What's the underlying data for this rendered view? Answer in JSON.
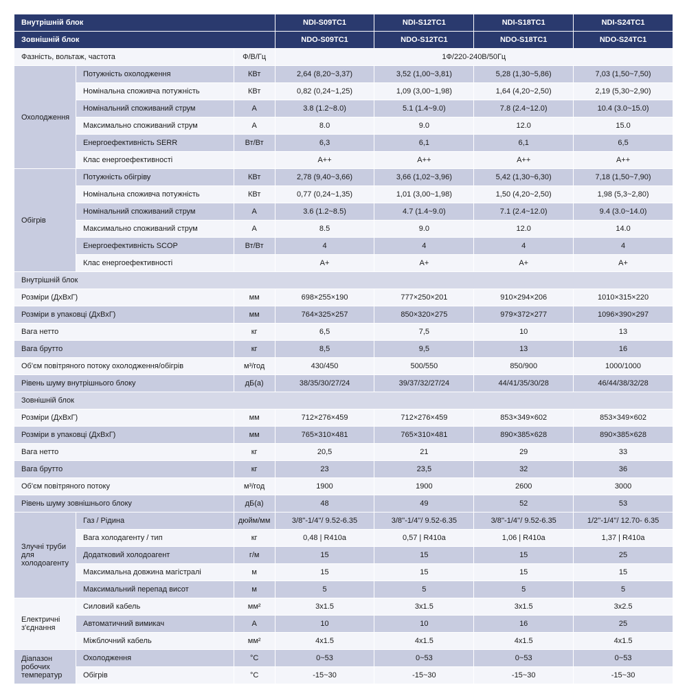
{
  "headers": {
    "indoor": "Внутрішній блок",
    "outdoor": "Зовнішній блок",
    "models_indoor": [
      "NDI-S09TC1",
      "NDI-S12TC1",
      "NDI-S18TC1",
      "NDI-S24TC1"
    ],
    "models_outdoor": [
      "NDO-S09TC1",
      "NDO-S12TC1",
      "NDO-S18TC1",
      "NDO-S24TC1"
    ]
  },
  "phase": {
    "label": "Фазність, вольтаж, частота",
    "unit": "Ф/В/Гц",
    "value": "1Ф/220-240В/50Гц"
  },
  "cooling": {
    "group": "Охолодження",
    "rows": [
      {
        "label": "Потужність охолодження",
        "unit": "КВт",
        "v": [
          "2,64 (8,20~3,37)",
          "3,52 (1,00~3,81)",
          "5,28 (1,30~5,86)",
          "7,03 (1,50~7,50)"
        ]
      },
      {
        "label": "Номінальна споживча потужність",
        "unit": "КВт",
        "v": [
          "0,82 (0,24~1,25)",
          "1,09 (3,00~1,98)",
          "1,64 (4,20~2,50)",
          "2,19 (5,30~2,90)"
        ]
      },
      {
        "label": "Номінальний споживаний струм",
        "unit": "А",
        "v": [
          "3.8 (1.2~8.0)",
          "5.1 (1.4~9.0)",
          "7.8 (2.4~12.0)",
          "10.4 (3.0~15.0)"
        ]
      },
      {
        "label": "Максимально споживаний струм",
        "unit": "А",
        "v": [
          "8.0",
          "9.0",
          "12.0",
          "15.0"
        ]
      },
      {
        "label": "Енергоефективність SERR",
        "unit": "Вт/Вт",
        "v": [
          "6,3",
          "6,1",
          "6,1",
          "6,5"
        ]
      },
      {
        "label": "Клас енергоефективності",
        "unit": "",
        "v": [
          "A++",
          "A++",
          "A++",
          "A++"
        ]
      }
    ]
  },
  "heating": {
    "group": "Обігрів",
    "rows": [
      {
        "label": "Потужність обігріву",
        "unit": "КВт",
        "v": [
          "2,78 (9,40~3,66)",
          "3,66 (1,02~3,96)",
          "5,42 (1,30~6,30)",
          "7,18 (1,50~7,90)"
        ]
      },
      {
        "label": "Номінальна споживча потужність",
        "unit": "КВт",
        "v": [
          "0,77 (0,24~1,35)",
          "1,01 (3,00~1,98)",
          "1,50 (4,20~2,50)",
          "1,98 (5,3~2,80)"
        ]
      },
      {
        "label": "Номінальний споживаний струм",
        "unit": "А",
        "v": [
          "3.6 (1.2~8.5)",
          "4.7 (1.4~9.0)",
          "7.1 (2.4~12.0)",
          "9.4 (3.0~14.0)"
        ]
      },
      {
        "label": "Максимально споживаний струм",
        "unit": "А",
        "v": [
          "8.5",
          "9.0",
          "12.0",
          "14.0"
        ]
      },
      {
        "label": "Енергоефективність SCOP",
        "unit": "Вт/Вт",
        "v": [
          "4",
          "4",
          "4",
          "4"
        ]
      },
      {
        "label": "Клас енергоефективності",
        "unit": "",
        "v": [
          "A+",
          "A+",
          "A+",
          "A+"
        ]
      }
    ]
  },
  "indoor_section": {
    "title": "Внутрішній блок",
    "rows": [
      {
        "label": "Розміри (ДхВхГ)",
        "unit": "мм",
        "v": [
          "698×255×190",
          "777×250×201",
          "910×294×206",
          "1010×315×220"
        ]
      },
      {
        "label": "Розміри в упаковці (ДхВхГ)",
        "unit": "мм",
        "v": [
          "764×325×257",
          "850×320×275",
          "979×372×277",
          "1096×390×297"
        ]
      },
      {
        "label": "Вага нетто",
        "unit": "кг",
        "v": [
          "6,5",
          "7,5",
          "10",
          "13"
        ]
      },
      {
        "label": "Вага брутто",
        "unit": "кг",
        "v": [
          "8,5",
          "9,5",
          "13",
          "16"
        ]
      },
      {
        "label": "Об'єм повітряного потоку охолодження/обігрів",
        "unit": "м³/год",
        "v": [
          "430/450",
          "500/550",
          "850/900",
          "1000/1000"
        ]
      },
      {
        "label": "Рівень шуму внутрішнього блоку",
        "unit": "дБ(а)",
        "v": [
          "38/35/30/27/24",
          "39/37/32/27/24",
          "44/41/35/30/28",
          "46/44/38/32/28"
        ]
      }
    ]
  },
  "outdoor_section": {
    "title": "Зовнішній блок",
    "rows": [
      {
        "label": "Розміри (ДхВхГ)",
        "unit": "мм",
        "v": [
          "712×276×459",
          "712×276×459",
          "853×349×602",
          "853×349×602"
        ]
      },
      {
        "label": "Розміри в упаковці (ДхВхГ)",
        "unit": "мм",
        "v": [
          "765×310×481",
          "765×310×481",
          "890×385×628",
          "890×385×628"
        ]
      },
      {
        "label": "Вага нетто",
        "unit": "кг",
        "v": [
          "20,5",
          "21",
          "29",
          "33"
        ]
      },
      {
        "label": "Вага брутто",
        "unit": "кг",
        "v": [
          "23",
          "23,5",
          "32",
          "36"
        ]
      },
      {
        "label": "Об'єм повітряного потоку",
        "unit": "м³/год",
        "v": [
          "1900",
          "1900",
          "2600",
          "3000"
        ]
      },
      {
        "label": "Рівень шуму зовнішнього блоку",
        "unit": "дБ(а)",
        "v": [
          "48",
          "49",
          "52",
          "53"
        ]
      }
    ]
  },
  "pipes": {
    "group": "Злучні труби для холодоагенту",
    "rows": [
      {
        "label": "Газ / Рідина",
        "unit": "дюйм/мм",
        "v": [
          "3/8''-1/4''/ 9.52-6.35",
          "3/8''-1/4''/ 9.52-6.35",
          "3/8''-1/4''/ 9.52-6.35",
          "1/2''-1/4''/ 12.70- 6.35"
        ]
      },
      {
        "label": "Вага холодагенту / тип",
        "unit": "кг",
        "v": [
          "0,48 | R410a",
          "0,57 | R410a",
          "1,06 | R410a",
          "1,37 | R410a"
        ]
      },
      {
        "label": "Додатковий холодоагент",
        "unit": "г/м",
        "v": [
          "15",
          "15",
          "15",
          "25"
        ]
      },
      {
        "label": "Максимальна довжина магістралі",
        "unit": "м",
        "v": [
          "15",
          "15",
          "15",
          "15"
        ]
      },
      {
        "label": "Максимальний перепад висот",
        "unit": "м",
        "v": [
          "5",
          "5",
          "5",
          "5"
        ]
      }
    ]
  },
  "electric": {
    "group": "Електричні з'єднання",
    "rows": [
      {
        "label": "Силовий кабель",
        "unit": "мм²",
        "v": [
          "3x1.5",
          "3x1.5",
          "3x1.5",
          "3x2.5"
        ]
      },
      {
        "label": "Автоматичний вимикач",
        "unit": "А",
        "v": [
          "10",
          "10",
          "16",
          "25"
        ]
      },
      {
        "label": "Міжблочний кабель",
        "unit": "мм²",
        "v": [
          "4x1.5",
          "4x1.5",
          "4x1.5",
          "4x1.5"
        ]
      }
    ]
  },
  "temp": {
    "group": "Діапазон робочих температур",
    "rows": [
      {
        "label": "Охолодження",
        "unit": "°C",
        "v": [
          "0~53",
          "0~53",
          "0~53",
          "0~53"
        ]
      },
      {
        "label": "Обігрів",
        "unit": "°C",
        "v": [
          "-15~30",
          "-15~30",
          "-15~30",
          "-15~30"
        ]
      }
    ]
  }
}
